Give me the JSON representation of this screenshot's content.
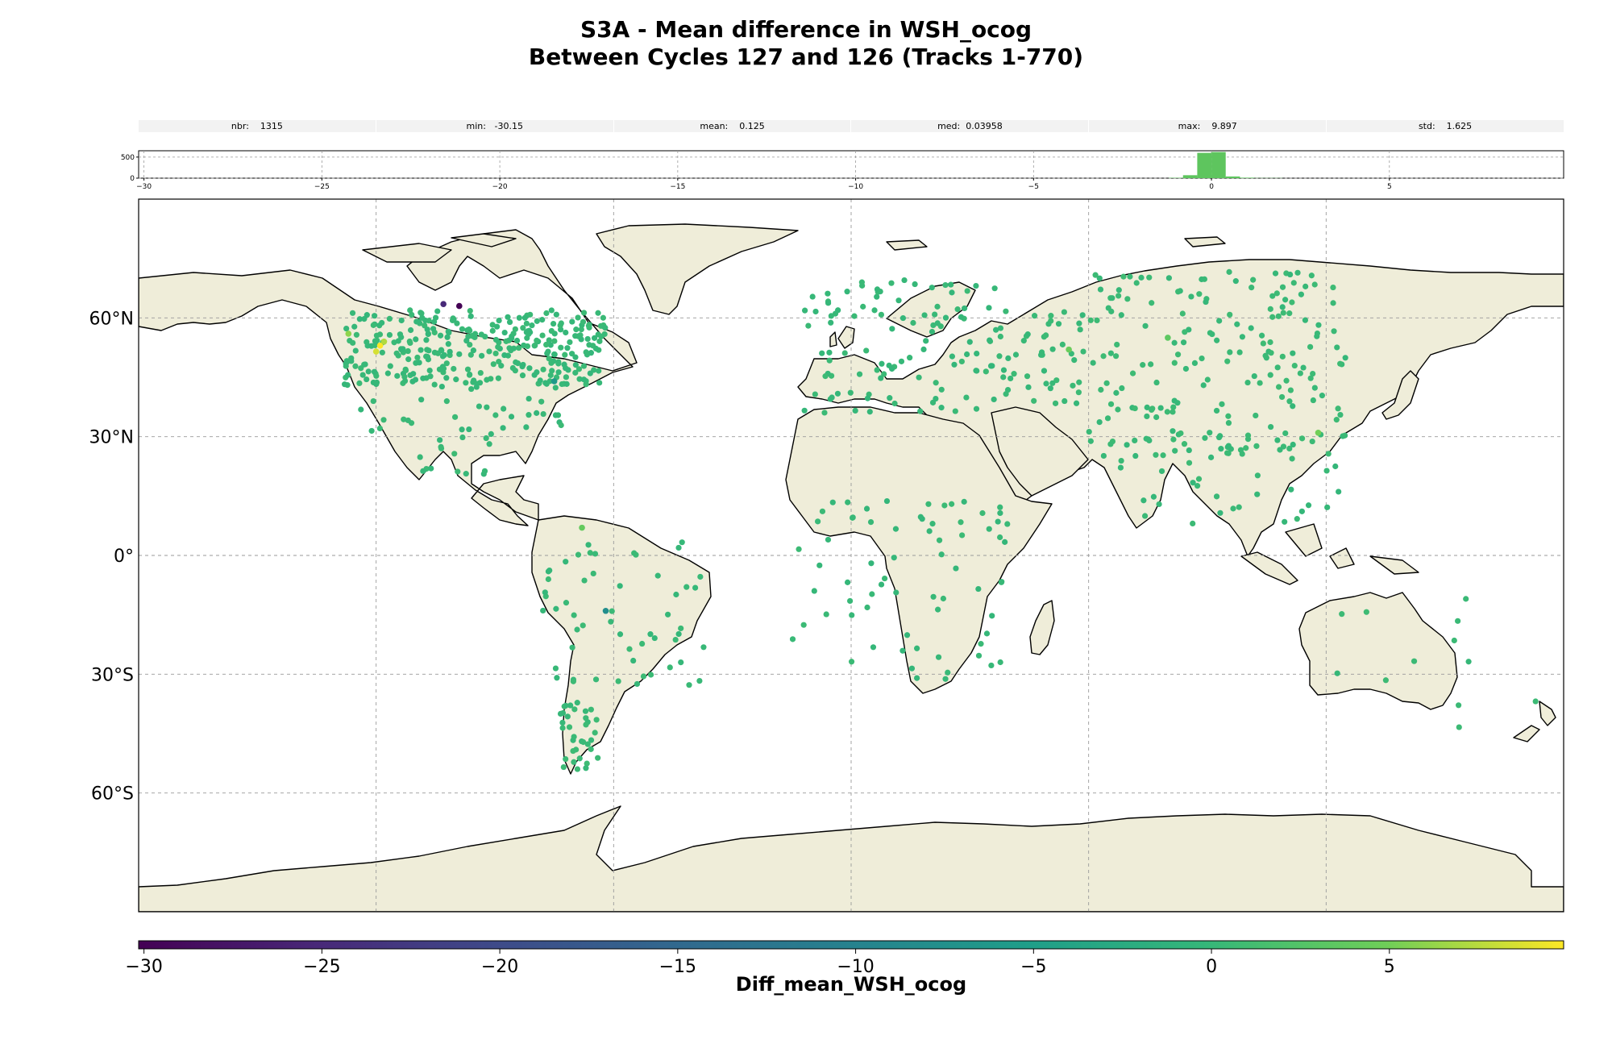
{
  "title": {
    "line1": "S3A - Mean difference in WSH_ocog",
    "line2": "Between Cycles 127 and 126 (Tracks 1-770)"
  },
  "stats": [
    {
      "label": "nbr:",
      "value": "1315"
    },
    {
      "label": "min:",
      "value": "-30.15"
    },
    {
      "label": "mean:",
      "value": "0.125"
    },
    {
      "label": "med:",
      "value": "0.03958"
    },
    {
      "label": "max:",
      "value": "9.897"
    },
    {
      "label": "std:",
      "value": "1.625"
    }
  ],
  "colors": {
    "land": "#efedd9",
    "coast": "#000000",
    "grid": "#9a9a9a",
    "hist_bar": "#5ec55e",
    "point_main": "#4fc35e"
  },
  "chart_data": [
    {
      "type": "histogram",
      "xlim": [
        -30.15,
        9.897
      ],
      "ylim": [
        0,
        650
      ],
      "xticks": [
        -30,
        -25,
        -20,
        -15,
        -10,
        -5,
        0,
        5
      ],
      "yticks": [
        0,
        500
      ],
      "grid": true,
      "bins": [
        {
          "x0": -1.2,
          "x1": -0.8,
          "count": 8
        },
        {
          "x0": -0.8,
          "x1": -0.4,
          "count": 70
        },
        {
          "x0": -0.4,
          "x1": 0.0,
          "count": 600
        },
        {
          "x0": 0.0,
          "x1": 0.4,
          "count": 620
        },
        {
          "x0": 0.4,
          "x1": 0.8,
          "count": 40
        },
        {
          "x0": 0.8,
          "x1": 1.2,
          "count": 12
        },
        {
          "x0": 1.2,
          "x1": 2.0,
          "count": 4
        }
      ]
    },
    {
      "type": "scatter",
      "projection": "plate-carree",
      "xlim": [
        -180,
        180
      ],
      "ylim": [
        -90,
        90
      ],
      "yticks": [
        "60°N",
        "30°N",
        "0°",
        "30°S",
        "60°S"
      ],
      "grid": true,
      "colorbar": {
        "label": "Diff_mean_WSH_ocog",
        "range": [
          -30.15,
          9.897
        ],
        "ticks": [
          -30,
          -25,
          -20,
          -15,
          -10,
          -5,
          0,
          5
        ],
        "colormap": "viridis"
      },
      "clusters": [
        {
          "lon": [
            -128,
            -62
          ],
          "lat": [
            43,
            62
          ],
          "n": 320,
          "value": 0.1
        },
        {
          "lon": [
            -124,
            -70
          ],
          "lat": [
            28,
            45
          ],
          "n": 40,
          "value": 0.1
        },
        {
          "lon": [
            -110,
            -88
          ],
          "lat": [
            14,
            32
          ],
          "n": 14,
          "value": 0.2
        },
        {
          "lon": [
            -78,
            -36
          ],
          "lat": [
            -33,
            4
          ],
          "n": 55,
          "value": 0.2
        },
        {
          "lon": [
            -74,
            -64
          ],
          "lat": [
            -54,
            -37
          ],
          "n": 35,
          "value": 0.3
        },
        {
          "lon": [
            -12,
            38
          ],
          "lat": [
            36,
            70
          ],
          "n": 110,
          "value": 0.1
        },
        {
          "lon": [
            38,
            60
          ],
          "lat": [
            38,
            62
          ],
          "n": 45,
          "value": 0.2
        },
        {
          "lon": [
            60,
            125
          ],
          "lat": [
            25,
            72
          ],
          "n": 190,
          "value": 0.3
        },
        {
          "lon": [
            65,
            100
          ],
          "lat": [
            8,
            30
          ],
          "n": 30,
          "value": 0.2
        },
        {
          "lon": [
            100,
            125
          ],
          "lat": [
            0,
            25
          ],
          "n": 12,
          "value": 0.1
        },
        {
          "lon": [
            -15,
            40
          ],
          "lat": [
            -32,
            15
          ],
          "n": 70,
          "value": 0.1
        },
        {
          "lon": [
            115,
            175
          ],
          "lat": [
            -45,
            -10
          ],
          "n": 12,
          "value": 0.3
        }
      ],
      "outliers": [
        {
          "lon": -99,
          "lat": 63,
          "value": -30.15
        },
        {
          "lon": -103,
          "lat": 63.5,
          "value": -25
        },
        {
          "lon": -119,
          "lat": 53,
          "value": 9.897
        },
        {
          "lon": -120,
          "lat": 51.5,
          "value": 8.5
        },
        {
          "lon": -118,
          "lat": 54,
          "value": 7.2
        },
        {
          "lon": -127,
          "lat": 56,
          "value": 6
        },
        {
          "lon": -75,
          "lat": 44,
          "value": -6
        },
        {
          "lon": -62,
          "lat": -14,
          "value": -8
        },
        {
          "lon": 55,
          "lat": 52,
          "value": 4.5
        },
        {
          "lon": 118,
          "lat": 31,
          "value": 5
        },
        {
          "lon": 80,
          "lat": 55,
          "value": 3.5
        },
        {
          "lon": -68,
          "lat": 7,
          "value": 4
        }
      ]
    }
  ]
}
